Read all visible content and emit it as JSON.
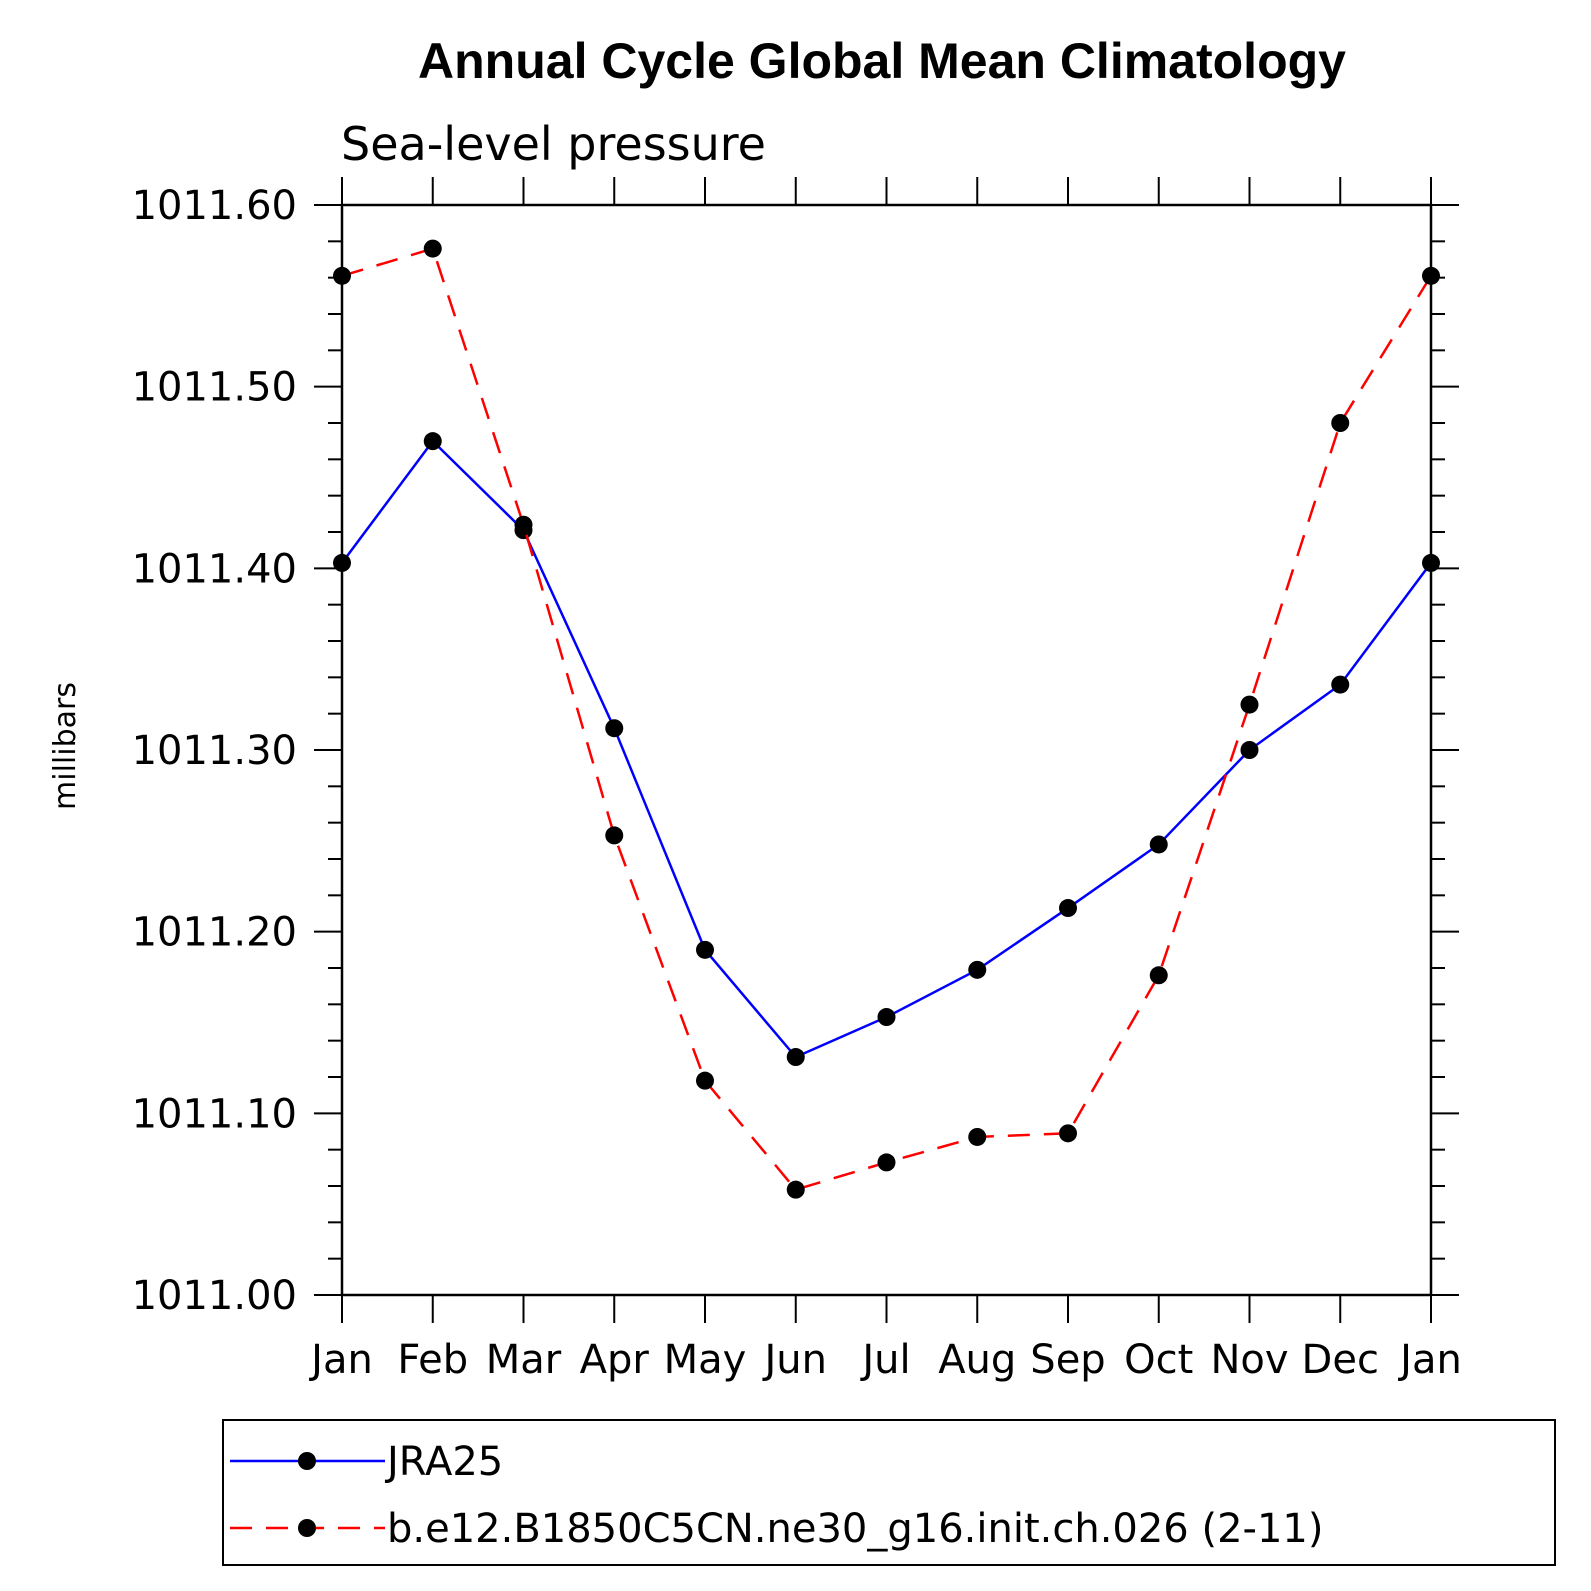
{
  "chart_data": {
    "type": "line",
    "title": "Annual Cycle Global Mean Climatology",
    "subtitle": "Sea-level pressure",
    "ylabel": "millibars",
    "xlabel": "",
    "categories": [
      "Jan",
      "Feb",
      "Mar",
      "Apr",
      "May",
      "Jun",
      "Jul",
      "Aug",
      "Sep",
      "Oct",
      "Nov",
      "Dec",
      "Jan"
    ],
    "ylim": [
      1011.0,
      1011.6
    ],
    "yticks": [
      "1011.00",
      "1011.10",
      "1011.20",
      "1011.30",
      "1011.40",
      "1011.50",
      "1011.60"
    ],
    "legend_position": "bottom",
    "series": [
      {
        "name": "JRA25",
        "color": "#0000ff",
        "dash": "solid",
        "marker": "circle",
        "values": [
          1011.403,
          1011.47,
          1011.421,
          1011.312,
          1011.19,
          1011.131,
          1011.153,
          1011.179,
          1011.213,
          1011.248,
          1011.3,
          1011.336,
          1011.403
        ]
      },
      {
        "name": "b.e12.B1850C5CN.ne30_g16.init.ch.026 (2-11)",
        "color": "#ff0000",
        "dash": "dashed",
        "marker": "circle",
        "values": [
          1011.561,
          1011.576,
          1011.424,
          1011.253,
          1011.118,
          1011.058,
          1011.073,
          1011.087,
          1011.089,
          1011.176,
          1011.325,
          1011.48,
          1011.561
        ]
      }
    ]
  }
}
